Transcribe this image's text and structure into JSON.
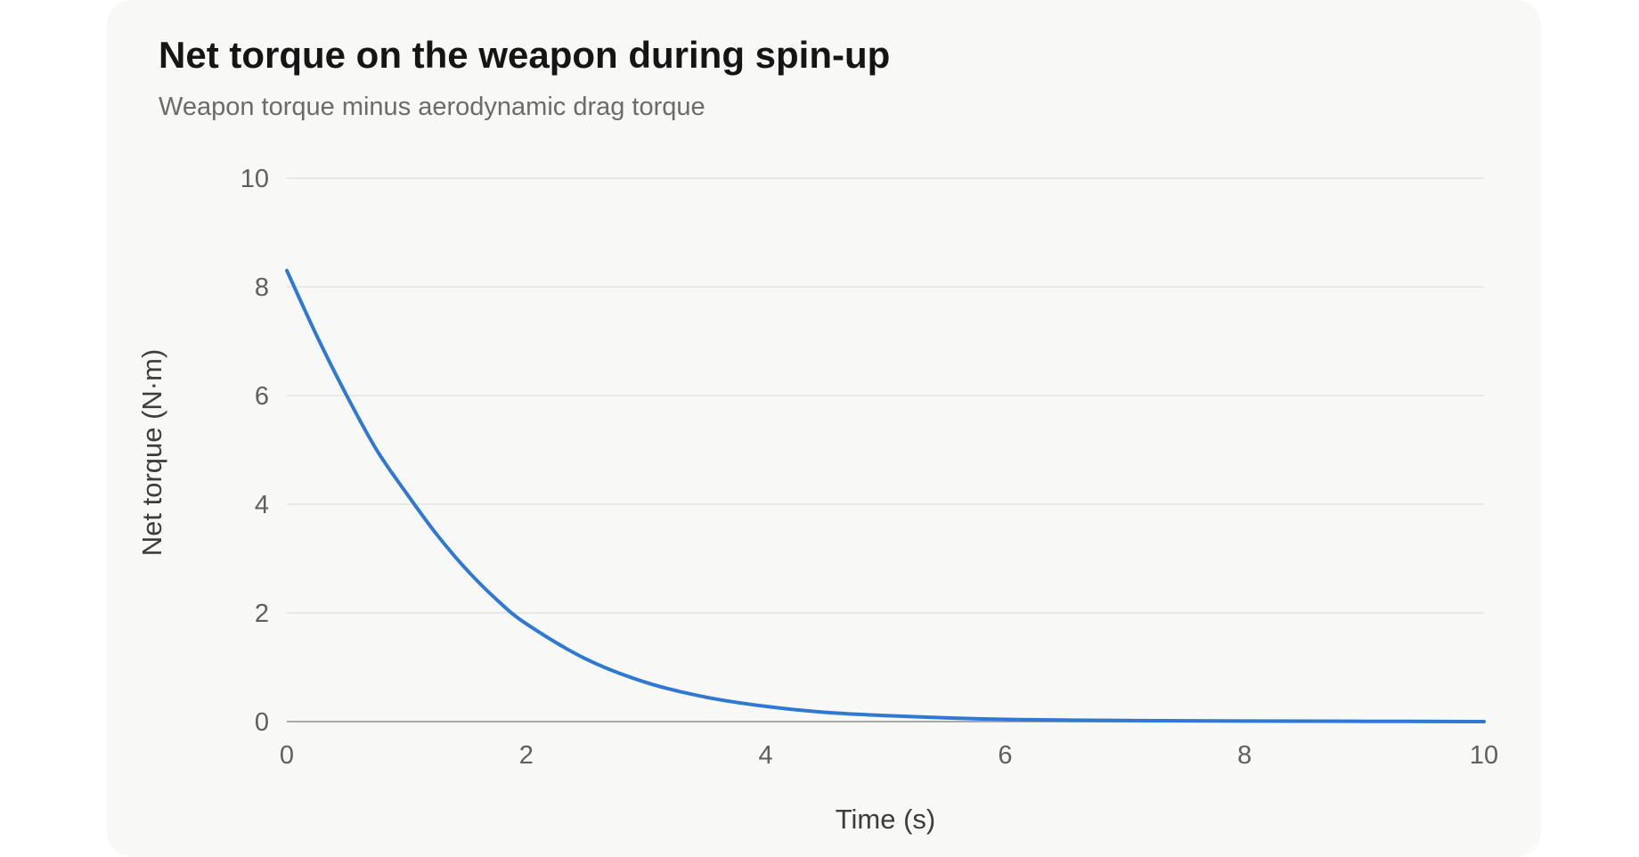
{
  "chart_data": {
    "type": "line",
    "title": "Net torque on the weapon during spin-up",
    "subtitle": "Weapon torque minus aerodynamic drag torque",
    "xlabel": "Time (s)",
    "ylabel": "Net torque (N·m)",
    "xlim": [
      0,
      10
    ],
    "ylim": [
      0,
      10
    ],
    "x_ticks": [
      "0",
      "2",
      "4",
      "6",
      "8",
      "10"
    ],
    "y_ticks": [
      "0",
      "2",
      "4",
      "6",
      "8",
      "10"
    ],
    "grid": "horizontal",
    "colors": {
      "line": "#2f78d4",
      "grid": "#e3e3e1",
      "baseline": "#a8a8a8"
    },
    "series": [
      {
        "x": [
          0,
          0.25,
          0.5,
          0.75,
          1,
          1.25,
          1.5,
          1.75,
          2,
          2.5,
          3,
          3.5,
          4,
          4.5,
          5,
          5.5,
          6,
          7,
          8,
          9,
          10
        ],
        "y": [
          8.3,
          7.1,
          6.0,
          5.0,
          4.2,
          3.45,
          2.8,
          2.25,
          1.8,
          1.15,
          0.72,
          0.45,
          0.28,
          0.17,
          0.11,
          0.07,
          0.04,
          0.02,
          0.01,
          0.005,
          0.0
        ]
      }
    ]
  }
}
